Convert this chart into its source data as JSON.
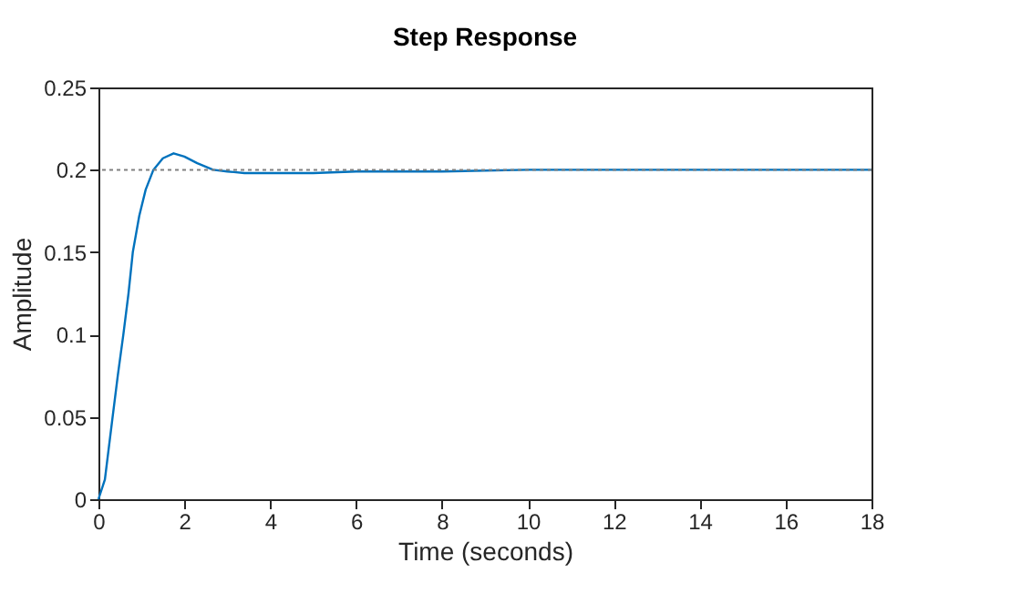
{
  "chart_data": {
    "type": "line",
    "title": "Step Response",
    "xlabel": "Time (seconds)",
    "ylabel": "Amplitude",
    "xlim": [
      0,
      18
    ],
    "xticks": [
      0,
      2,
      4,
      6,
      8,
      10,
      12,
      14,
      16,
      18
    ],
    "ylim": [
      0,
      0.25
    ],
    "yticks": [
      0,
      0.05,
      0.1,
      0.15,
      0.2,
      0.25
    ],
    "grid": false,
    "line_style": "solid",
    "marker": "none",
    "ref_lines": [
      {
        "axis": "y",
        "value": 0.2,
        "color": "#808080",
        "line_style": "dotted"
      }
    ],
    "series": [
      {
        "color": "#0072bd",
        "x": [
          0,
          0.15,
          0.33,
          0.45,
          0.58,
          0.7,
          0.8,
          0.95,
          1.1,
          1.28,
          1.5,
          1.75,
          2.0,
          2.3,
          2.67,
          3.0,
          3.4,
          4,
          5,
          6,
          8,
          10,
          12,
          14,
          16,
          18
        ],
        "values": [
          0,
          0.012,
          0.05,
          0.075,
          0.1,
          0.125,
          0.15,
          0.172,
          0.188,
          0.2,
          0.207,
          0.21,
          0.208,
          0.204,
          0.2,
          0.199,
          0.198,
          0.198,
          0.198,
          0.199,
          0.199,
          0.2,
          0.2,
          0.2,
          0.2,
          0.2
        ]
      }
    ]
  }
}
